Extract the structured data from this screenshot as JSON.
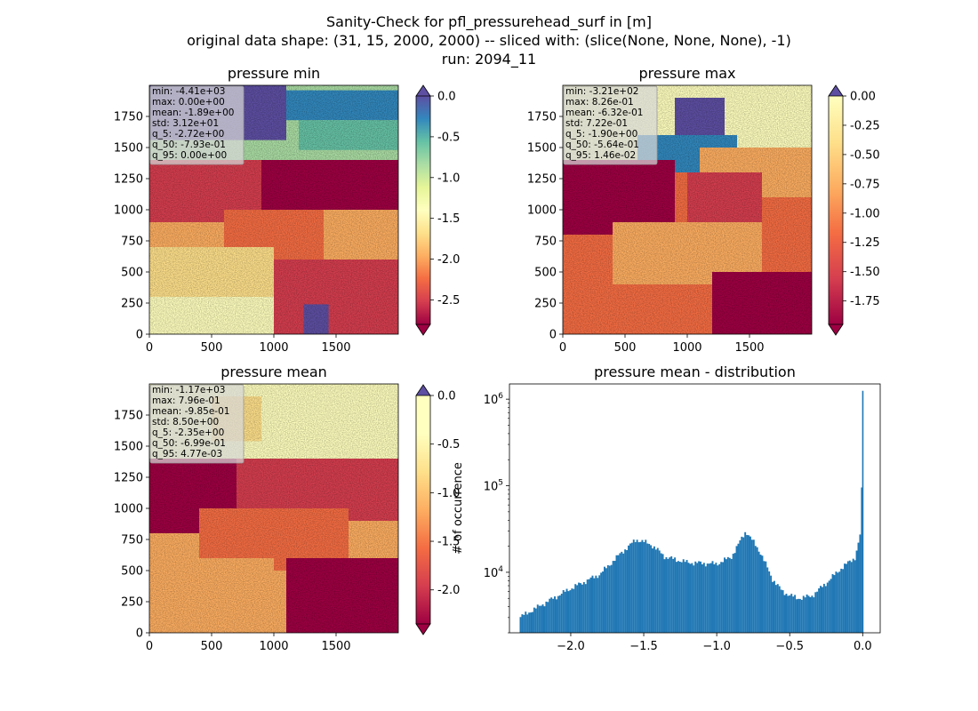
{
  "suptitle": [
    "Sanity-Check for pfl_pressurehead_surf in [m]",
    "original data shape: (31, 15, 2000, 2000) -- sliced with: (slice(None, None, None), -1)",
    "run: 2094_11"
  ],
  "chart_data": [
    {
      "type": "heatmap",
      "title": "pressure min",
      "xlim": [
        0,
        2000
      ],
      "ylim": [
        0,
        2000
      ],
      "xticks": [
        "0",
        "500",
        "1000",
        "1500"
      ],
      "yticks": [
        "0",
        "250",
        "500",
        "750",
        "1000",
        "1250",
        "1500",
        "1750"
      ],
      "colorbar": {
        "range": [
          -2.8,
          0.0
        ],
        "ticks": [
          "0.0",
          "-0.5",
          "-1.0",
          "-1.5",
          "-2.0",
          "-2.5"
        ],
        "colormap": "Spectral",
        "extend": "both",
        "extend_color_high": "#5e4fa2"
      },
      "stats": [
        "min: -4.41e+03",
        "max: 0.00e+00",
        "mean: -1.89e+00",
        "std: 3.12e+01",
        "q_5: -2.72e+00",
        "q_50: -7.93e-01",
        "q_95: 0.00e+00"
      ]
    },
    {
      "type": "heatmap",
      "title": "pressure max",
      "xlim": [
        0,
        2000
      ],
      "ylim": [
        0,
        2000
      ],
      "xticks": [
        "0",
        "500",
        "1000",
        "1500"
      ],
      "yticks": [
        "0",
        "250",
        "500",
        "750",
        "1000",
        "1250",
        "1500",
        "1750"
      ],
      "colorbar": {
        "range": [
          -1.95,
          0.0
        ],
        "ticks": [
          "0.00",
          "-0.25",
          "-0.50",
          "-0.75",
          "-1.00",
          "-1.25",
          "-1.50",
          "-1.75"
        ],
        "colormap": "Spectral",
        "extend": "both",
        "extend_color_high": "#5e4fa2"
      },
      "stats": [
        "min: -3.21e+02",
        "max: 8.26e-01",
        "mean: -6.32e-01",
        "std: 7.22e-01",
        "q_5: -1.90e+00",
        "q_50: -5.64e-01",
        "q_95: 1.46e-02"
      ]
    },
    {
      "type": "heatmap",
      "title": "pressure mean",
      "xlim": [
        0,
        2000
      ],
      "ylim": [
        0,
        2000
      ],
      "xticks": [
        "0",
        "500",
        "1000",
        "1500"
      ],
      "yticks": [
        "0",
        "250",
        "500",
        "750",
        "1000",
        "1250",
        "1500",
        "1750"
      ],
      "colorbar": {
        "range": [
          -2.35,
          0.0
        ],
        "ticks": [
          "0.0",
          "-0.5",
          "-1.0",
          "-1.5",
          "-2.0"
        ],
        "colormap": "Spectral",
        "extend": "both",
        "extend_color_high": "#5e4fa2"
      },
      "stats": [
        "min: -1.17e+03",
        "max: 7.96e-01",
        "mean: -9.85e-01",
        "std: 8.50e+00",
        "q_5: -2.35e+00",
        "q_50: -6.99e-01",
        "q_95: 4.77e-03"
      ]
    },
    {
      "type": "bar",
      "title": "pressure mean - distribution",
      "ylabel": "# of occurrence",
      "xlabel": "",
      "yscale": "log",
      "ylim": [
        2000,
        1500000
      ],
      "xlim": [
        -2.42,
        0.12
      ],
      "xticks": [
        "−2.0",
        "−1.5",
        "−1.0",
        "−0.5",
        "0.0"
      ],
      "yticks": [
        {
          "base": "10",
          "exp": "4"
        },
        {
          "base": "10",
          "exp": "5"
        },
        {
          "base": "10",
          "exp": "6"
        }
      ],
      "color": "#1f77b4",
      "bins": {
        "x": [
          -2.35,
          -2.2,
          -2.0,
          -1.8,
          -1.65,
          -1.55,
          -1.45,
          -1.35,
          -1.2,
          -1.0,
          -0.9,
          -0.8,
          -0.7,
          -0.62,
          -0.55,
          -0.45,
          -0.35,
          -0.25,
          -0.15,
          -0.05,
          -0.015,
          -0.005,
          0.0
        ],
        "y": [
          3000,
          4200,
          6500,
          9500,
          17000,
          24000,
          21000,
          15000,
          13000,
          12500,
          15000,
          30000,
          17000,
          8500,
          6000,
          5000,
          5300,
          7500,
          11000,
          15000,
          28000,
          100000,
          1250000
        ]
      }
    }
  ]
}
